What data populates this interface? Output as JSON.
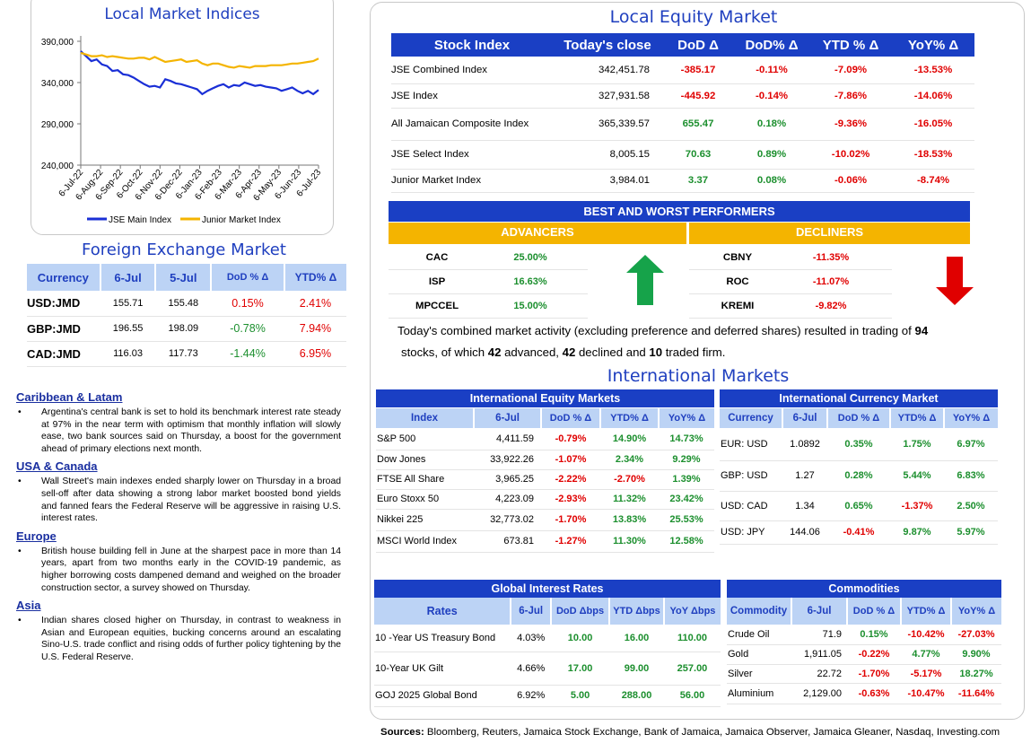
{
  "chart_data": {
    "type": "line",
    "title": "Local Market Indices",
    "x_ticks": [
      "6-Jul-22",
      "6-Aug-22",
      "6-Sep-22",
      "6-Oct-22",
      "6-Nov-22",
      "6-Dec-22",
      "6-Jan-23",
      "6-Feb-23",
      "6-Mar-23",
      "6-Apr-23",
      "6-May-23",
      "6-Jun-23",
      "6-Jul-23"
    ],
    "y_ticks": [
      "390,000",
      "340,000",
      "290,000",
      "240,000"
    ],
    "ylim": [
      240000,
      390000
    ],
    "series": [
      {
        "name": "JSE Main Index",
        "color": "#1a2fd6",
        "values": [
          378000,
          372000,
          366000,
          368000,
          362000,
          360000,
          354000,
          355000,
          350000,
          349000,
          346000,
          342000,
          338000,
          335000,
          336000,
          334000,
          344000,
          342000,
          339000,
          338000,
          336000,
          334000,
          332000,
          326000,
          330000,
          333000,
          336000,
          338000,
          334000,
          337000,
          336000,
          340000,
          338000,
          336000,
          337000,
          335000,
          334000,
          333000,
          330000,
          332000,
          334000,
          330000,
          327000,
          330000,
          326000,
          331000
        ]
      },
      {
        "name": "Junior Market Index",
        "color": "#f4b400",
        "values": [
          376000,
          374000,
          372000,
          372000,
          373000,
          371000,
          372000,
          371000,
          370000,
          369000,
          369000,
          370000,
          370000,
          368000,
          371000,
          368000,
          365000,
          366000,
          367000,
          368000,
          365000,
          366000,
          367000,
          363000,
          361000,
          363000,
          363000,
          361000,
          359000,
          358000,
          360000,
          359000,
          358000,
          360000,
          360000,
          360000,
          361000,
          361000,
          361000,
          362000,
          363000,
          363000,
          364000,
          365000,
          366000,
          369000
        ]
      }
    ]
  },
  "fx": {
    "title": "Foreign Exchange Market",
    "headers": [
      "Currency",
      "6-Jul",
      "5-Jul",
      "DoD % Δ",
      "YTD% Δ"
    ],
    "rows": [
      {
        "cur": "USD:JMD",
        "d1": "155.71",
        "d2": "155.48",
        "dod": "0.15%",
        "ytd": "2.41%",
        "dod_pos": true,
        "ytd_pos": false
      },
      {
        "cur": "GBP:JMD",
        "d1": "196.55",
        "d2": "198.09",
        "dod": "-0.78%",
        "ytd": "7.94%",
        "dod_pos": true,
        "ytd_pos": false
      },
      {
        "cur": "CAD:JMD",
        "d1": "116.03",
        "d2": "117.73",
        "dod": "-1.44%",
        "ytd": "6.95%",
        "dod_pos": true,
        "ytd_pos": false
      }
    ]
  },
  "news": [
    {
      "heading": "Caribbean & Latam",
      "text": "Argentina's central bank is set to hold its benchmark interest rate steady at 97% in the near term with optimism that monthly inflation will slowly ease, two bank sources said on Thursday, a boost for the government ahead of primary elections next month."
    },
    {
      "heading": "USA & Canada",
      "text": "Wall Street's main indexes ended sharply lower on Thursday in a broad sell-off after data showing a strong labor market boosted bond yields and fanned fears the Federal Reserve will be aggressive in raising U.S. interest rates."
    },
    {
      "heading": "Europe",
      "text": "British house building fell in June at the sharpest pace in more than 14 years, apart from two months early in the COVID-19 pandemic, as higher borrowing costs dampened demand and weighed on the broader construction sector, a survey showed on Thursday."
    },
    {
      "heading": "Asia",
      "text": "Indian shares closed higher on Thursday, in contrast to weakness in Asian and European equities, bucking concerns around an escalating Sino-U.S. trade conflict and rising odds of further policy tightening by the U.S. Federal Reserve."
    }
  ],
  "equity": {
    "title": "Local Equity Market",
    "headers": [
      "Stock Index",
      "Today's close",
      "DoD  Δ",
      "DoD% Δ",
      "YTD % Δ",
      "YoY% Δ"
    ],
    "rows": [
      {
        "name": "JSE Combined Index",
        "close": "342,451.78",
        "dod": "-385.17",
        "dodp": "-0.11%",
        "ytd": "-7.09%",
        "yoy": "-13.53%",
        "pos": false
      },
      {
        "name": "JSE Index",
        "close": "327,931.58",
        "dod": "-445.92",
        "dodp": "-0.14%",
        "ytd": "-7.86%",
        "yoy": "-14.06%",
        "pos": false
      },
      {
        "name": "All Jamaican Composite Index",
        "close": "365,339.57",
        "dod": "655.47",
        "dodp": "0.18%",
        "ytd": "-9.36%",
        "yoy": "-16.05%",
        "pos": true
      },
      {
        "name": "JSE Select Index",
        "close": "8,005.15",
        "dod": "70.63",
        "dodp": "0.89%",
        "ytd": "-10.02%",
        "yoy": "-18.53%",
        "pos": true
      },
      {
        "name": "Junior Market Index",
        "close": "3,984.01",
        "dod": "3.37",
        "dodp": "0.08%",
        "ytd": "-0.06%",
        "yoy": "-8.74%",
        "pos": true
      }
    ]
  },
  "performers": {
    "title": "BEST AND WORST PERFORMERS",
    "adv_label": "ADVANCERS",
    "dec_label": "DECLINERS",
    "advancers": [
      {
        "t": "CAC",
        "v": "25.00%"
      },
      {
        "t": "ISP",
        "v": "16.63%"
      },
      {
        "t": "MPCCEL",
        "v": "15.00%"
      }
    ],
    "decliners": [
      {
        "t": "CBNY",
        "v": "-11.35%"
      },
      {
        "t": "ROC",
        "v": "-11.07%"
      },
      {
        "t": "KREMI",
        "v": "-9.82%"
      }
    ],
    "up_color": "#16a34a",
    "down_color": "#e00000"
  },
  "summary": {
    "pre": "Today's combined market activity (excluding preference and deferred shares) resulted in trading of ",
    "total": "94",
    "mid1": " stocks, of which ",
    "adv": "42",
    "mid2": " advanced, ",
    "dec": "42",
    "mid3": " declined and ",
    "firm": "10",
    "post": " traded firm."
  },
  "intl": {
    "title": "International Markets",
    "eq_title": "International Equity Markets",
    "eq_headers": [
      "Index",
      "6-Jul",
      "DoD % Δ",
      "YTD% Δ",
      "YoY% Δ"
    ],
    "eq_rows": [
      {
        "n": "S&P 500",
        "v": "4,411.59",
        "dod": "-0.79%",
        "ytd": "14.90%",
        "yoy": "14.73%",
        "dneg": true,
        "yneg": false,
        "oneg": false
      },
      {
        "n": "Dow Jones",
        "v": "33,922.26",
        "dod": "-1.07%",
        "ytd": "2.34%",
        "yoy": "9.29%",
        "dneg": true,
        "yneg": false,
        "oneg": false
      },
      {
        "n": "FTSE All Share",
        "v": "3,965.25",
        "dod": "-2.22%",
        "ytd": "-2.70%",
        "yoy": "1.39%",
        "dneg": true,
        "yneg": true,
        "oneg": false
      },
      {
        "n": "Euro Stoxx 50",
        "v": "4,223.09",
        "dod": "-2.93%",
        "ytd": "11.32%",
        "yoy": "23.42%",
        "dneg": true,
        "yneg": false,
        "oneg": false
      },
      {
        "n": "Nikkei 225",
        "v": "32,773.02",
        "dod": "-1.70%",
        "ytd": "13.83%",
        "yoy": "25.53%",
        "dneg": true,
        "yneg": false,
        "oneg": false
      },
      {
        "n": "MSCI World Index",
        "v": "673.81",
        "dod": "-1.27%",
        "ytd": "11.30%",
        "yoy": "12.58%",
        "dneg": true,
        "yneg": false,
        "oneg": false
      }
    ],
    "cur_title": "International Currency Market",
    "cur_headers": [
      "Currency",
      "6-Jul",
      "DoD % Δ",
      "YTD% Δ",
      "YoY% Δ"
    ],
    "cur_rows": [
      {
        "n": "EUR: USD",
        "v": "1.0892",
        "dod": "0.35%",
        "ytd": "1.75%",
        "yoy": "6.97%",
        "dneg": false,
        "yneg": false,
        "oneg": false
      },
      {
        "n": "GBP: USD",
        "v": "1.27",
        "dod": "0.28%",
        "ytd": "5.44%",
        "yoy": "6.83%",
        "dneg": false,
        "yneg": false,
        "oneg": false
      },
      {
        "n": "USD: CAD",
        "v": "1.34",
        "dod": "0.65%",
        "ytd": "-1.37%",
        "yoy": "2.50%",
        "dneg": false,
        "yneg": true,
        "oneg": false
      },
      {
        "n": "USD: JPY",
        "v": "144.06",
        "dod": "-0.41%",
        "ytd": "9.87%",
        "yoy": "5.97%",
        "dneg": true,
        "yneg": false,
        "oneg": false
      }
    ],
    "rate_title": "Global Interest Rates",
    "rate_headers": [
      "Rates",
      "6-Jul",
      "DoD Δbps",
      "YTD Δbps",
      "YoY Δbps"
    ],
    "rate_rows": [
      {
        "n": "10 -Year US Treasury Bond",
        "v": "4.03%",
        "dod": "10.00",
        "ytd": "16.00",
        "yoy": "110.00"
      },
      {
        "n": "10-Year UK Gilt",
        "v": "4.66%",
        "dod": "17.00",
        "ytd": "99.00",
        "yoy": "257.00"
      },
      {
        "n": "GOJ 2025 Global Bond",
        "v": "6.92%",
        "dod": "5.00",
        "ytd": "288.00",
        "yoy": "56.00"
      }
    ],
    "com_title": "Commodities",
    "com_headers": [
      "Commodity",
      "6-Jul",
      "DoD % Δ",
      "YTD% Δ",
      "YoY% Δ"
    ],
    "com_rows": [
      {
        "n": "Crude Oil",
        "v": "71.9",
        "dod": "0.15%",
        "ytd": "-10.42%",
        "yoy": "-27.03%",
        "dneg": false,
        "yneg": true,
        "oneg": true
      },
      {
        "n": "Gold",
        "v": "1,911.05",
        "dod": "-0.22%",
        "ytd": "4.77%",
        "yoy": "9.90%",
        "dneg": true,
        "yneg": false,
        "oneg": false
      },
      {
        "n": "Silver",
        "v": "22.72",
        "dod": "-1.70%",
        "ytd": "-5.17%",
        "yoy": "18.27%",
        "dneg": true,
        "yneg": true,
        "oneg": false
      },
      {
        "n": "Aluminium",
        "v": "2,129.00",
        "dod": "-0.63%",
        "ytd": "-10.47%",
        "yoy": "-11.64%",
        "dneg": true,
        "yneg": true,
        "oneg": true
      }
    ]
  },
  "sources": {
    "label": "Sources:",
    "text": " Bloomberg, Reuters, Jamaica Stock Exchange, Bank of Jamaica, Jamaica Observer, Jamaica Gleaner, Nasdaq, Investing.com"
  }
}
